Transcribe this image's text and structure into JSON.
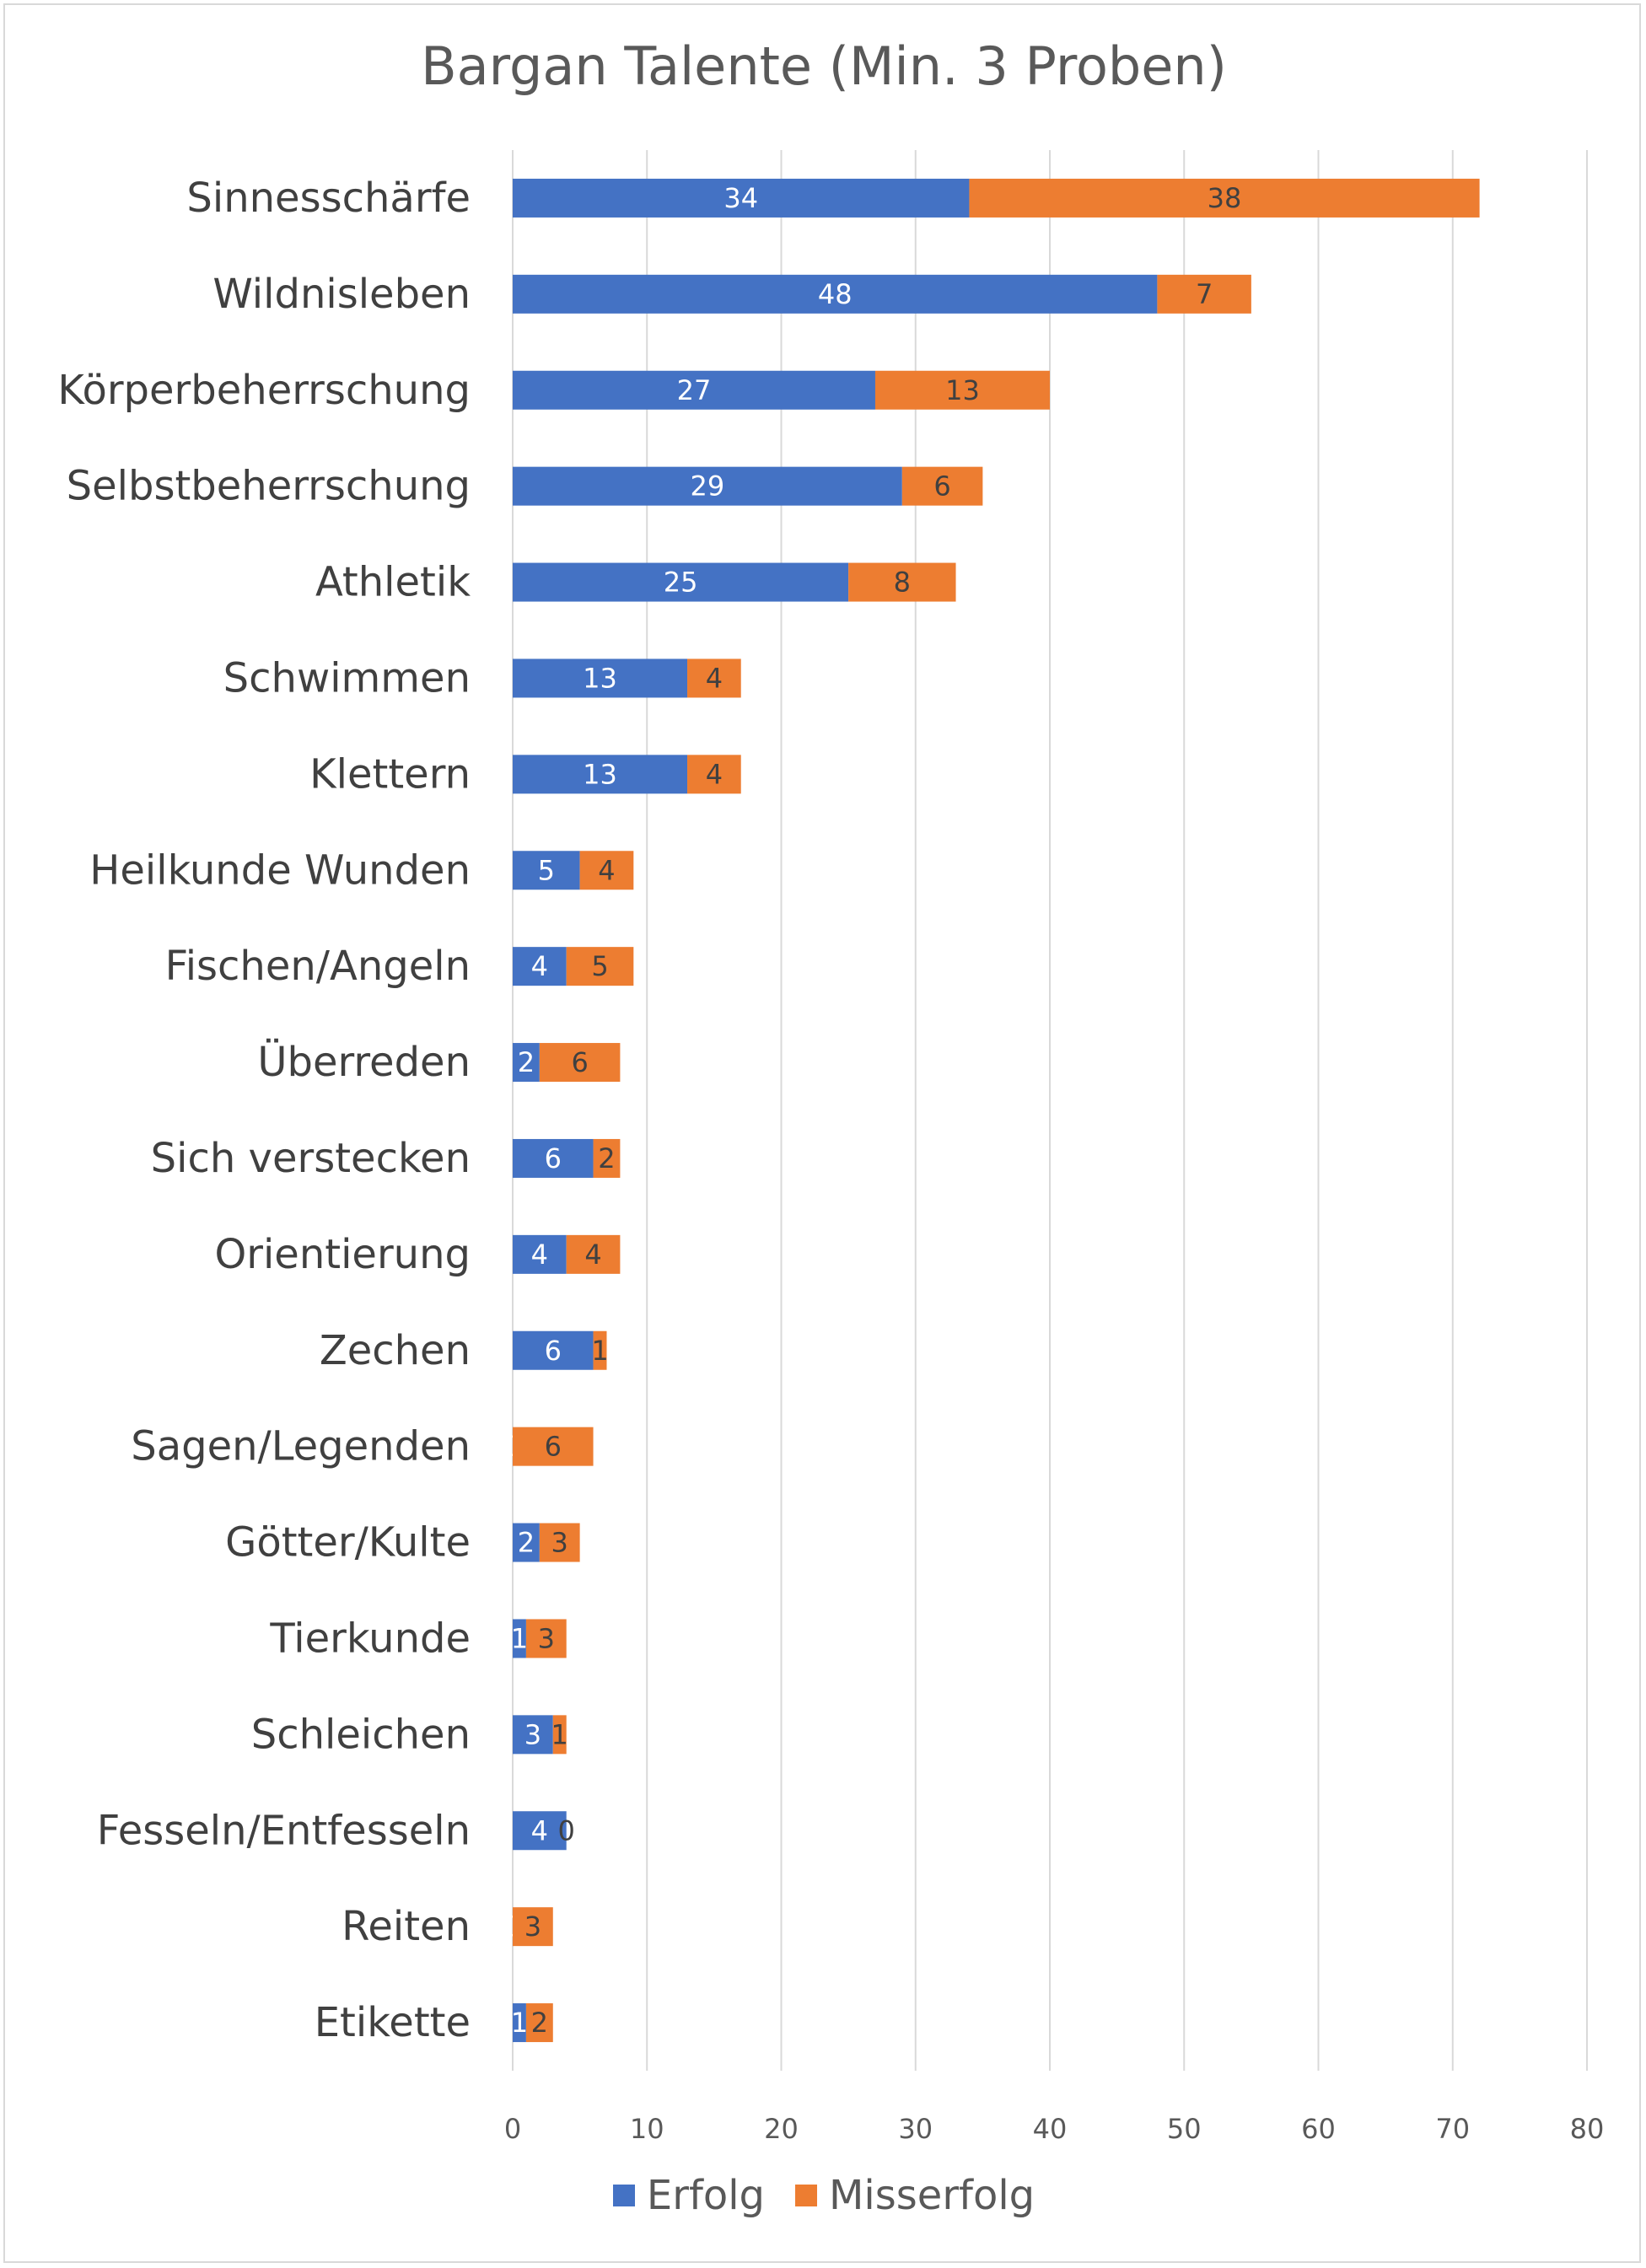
{
  "chart_data": {
    "type": "bar",
    "orientation": "horizontal",
    "stacked": true,
    "title": "Bargan Talente (Min. 3 Proben)",
    "categories": [
      "Sinnesschärfe",
      "Wildnisleben",
      "Körperbeherrschung",
      "Selbstbeherrschung",
      "Athletik",
      "Schwimmen",
      "Klettern",
      "Heilkunde Wunden",
      "Fischen/Angeln",
      "Überreden",
      "Sich verstecken",
      "Orientierung",
      "Zechen",
      "Sagen/Legenden",
      "Götter/Kulte",
      "Tierkunde",
      "Schleichen",
      "Fesseln/Entfesseln",
      "Reiten",
      "Etikette"
    ],
    "series": [
      {
        "name": "Erfolg",
        "color": "#4472c4",
        "label_color": "#ffffff",
        "values": [
          34,
          48,
          27,
          29,
          25,
          13,
          13,
          5,
          4,
          2,
          6,
          4,
          6,
          0,
          2,
          1,
          3,
          4,
          0,
          1
        ]
      },
      {
        "name": "Misserfolg",
        "color": "#ed7d31",
        "label_color": "#404040",
        "values": [
          38,
          7,
          13,
          6,
          8,
          4,
          4,
          4,
          5,
          6,
          2,
          4,
          1,
          6,
          3,
          3,
          1,
          0,
          3,
          2
        ]
      }
    ],
    "xlim": [
      0,
      80
    ],
    "xticks": [
      "0",
      "10",
      "20",
      "30",
      "40",
      "50",
      "60",
      "70",
      "80"
    ],
    "grid": true,
    "legend": "bottom"
  }
}
